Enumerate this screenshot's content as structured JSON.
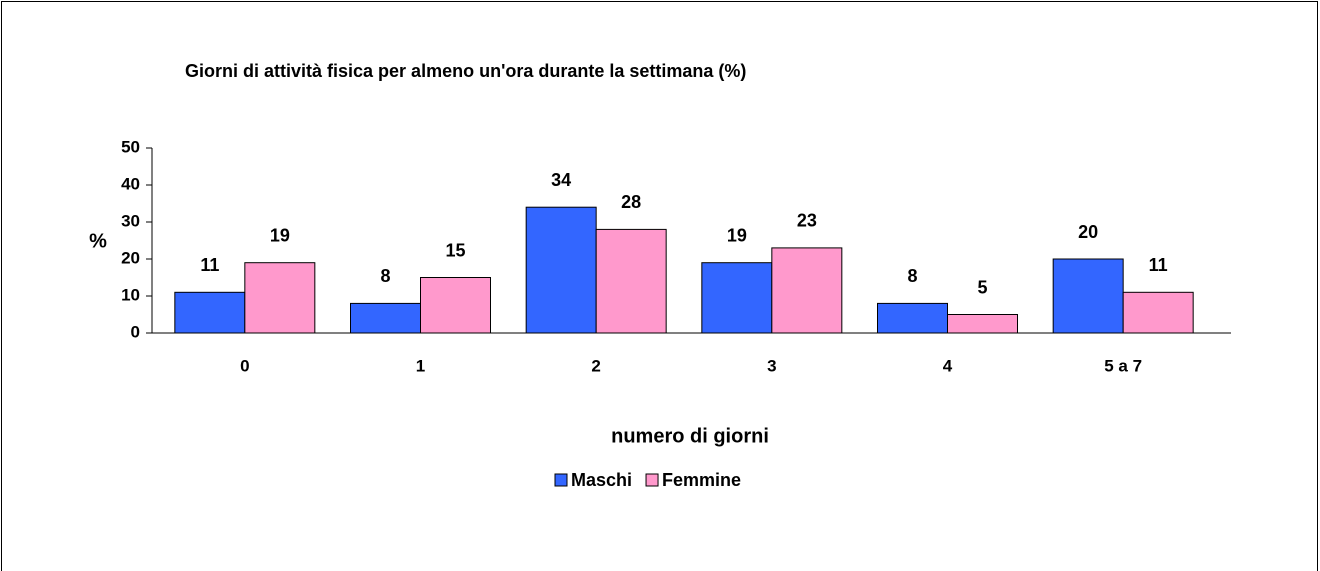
{
  "chart_data": {
    "type": "bar",
    "title": "Giorni di attività fisica per almeno un'ora durante la settimana (%)",
    "x_label": "numero di giorni",
    "y_label": "%",
    "categories": [
      "0",
      "1",
      "2",
      "3",
      "4",
      "5 a 7"
    ],
    "series": [
      {
        "name": "Maschi",
        "color": "#3366ff",
        "values": [
          11,
          8,
          34,
          19,
          8,
          20
        ]
      },
      {
        "name": "Femmine",
        "color": "#ff99cc",
        "values": [
          19,
          15,
          28,
          23,
          5,
          11
        ]
      }
    ],
    "ylim": [
      0,
      50
    ],
    "yticks": [
      0,
      10,
      20,
      30,
      40,
      50
    ],
    "legend": "bottom"
  }
}
